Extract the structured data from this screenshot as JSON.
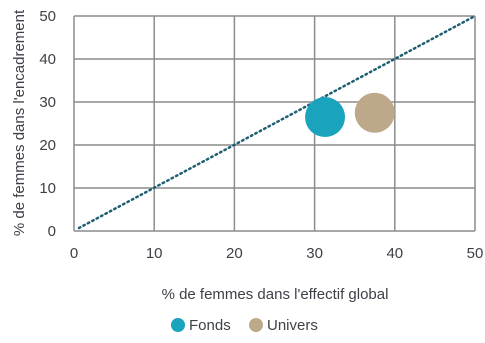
{
  "chart_data": {
    "type": "scatter",
    "xlabel": "% de femmes dans l'effectif global",
    "ylabel": "% de femmes dans l'encadrement",
    "xlim": [
      0,
      50
    ],
    "ylim": [
      0,
      50
    ],
    "xticks": [
      0,
      10,
      20,
      30,
      40,
      50
    ],
    "yticks": [
      0,
      10,
      20,
      30,
      40,
      50
    ],
    "grid": true,
    "legend_position": "bottom",
    "reference_line": {
      "style": "dotted",
      "color": "#1f5f73",
      "from": [
        0,
        0
      ],
      "to": [
        50,
        50
      ]
    },
    "series": [
      {
        "name": "Fonds",
        "color": "#1aa3bd",
        "points": [
          {
            "x": 31.3,
            "y": 26.5
          }
        ]
      },
      {
        "name": "Univers",
        "color": "#bda88a",
        "points": [
          {
            "x": 37.5,
            "y": 27.5
          }
        ]
      }
    ]
  }
}
